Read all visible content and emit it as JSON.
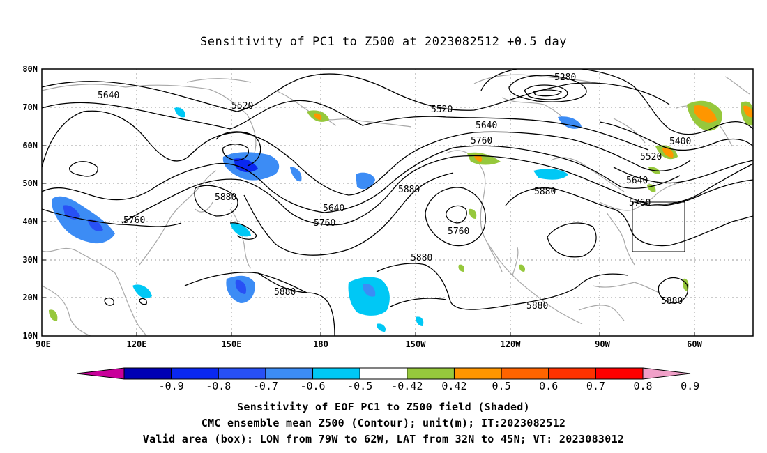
{
  "title": "Sensitivity of PC1 to Z500 at 2023082512 +0.5 day",
  "lat_labels": [
    "80N",
    "70N",
    "60N",
    "50N",
    "40N",
    "30N",
    "20N",
    "10N"
  ],
  "lon_labels": [
    "90E",
    "120E",
    "150E",
    "180",
    "150W",
    "120W",
    "90W",
    "60W"
  ],
  "contour_labels": [
    {
      "text": "5640",
      "id": "c1"
    },
    {
      "text": "5520",
      "id": "c2"
    },
    {
      "text": "5280",
      "id": "c3"
    },
    {
      "text": "5520",
      "id": "c4"
    },
    {
      "text": "5640",
      "id": "c5"
    },
    {
      "text": "5760",
      "id": "c6"
    },
    {
      "text": "5400",
      "id": "c7"
    },
    {
      "text": "5520",
      "id": "c8"
    },
    {
      "text": "5640",
      "id": "c9"
    },
    {
      "text": "5760",
      "id": "c10"
    },
    {
      "text": "5880",
      "id": "c11"
    },
    {
      "text": "5880",
      "id": "c12"
    },
    {
      "text": "5640",
      "id": "c13"
    },
    {
      "text": "5760",
      "id": "c14"
    },
    {
      "text": "5760",
      "id": "c15"
    },
    {
      "text": "5760",
      "id": "c16"
    },
    {
      "text": "5880",
      "id": "c17"
    },
    {
      "text": "5880",
      "id": "c18"
    },
    {
      "text": "5880",
      "id": "c19"
    },
    {
      "text": "5880",
      "id": "c20"
    },
    {
      "text": "5880",
      "id": "c21"
    }
  ],
  "colorbar": {
    "labels": [
      "-0.9",
      "-0.8",
      "-0.7",
      "-0.6",
      "-0.5",
      "-0.42",
      "0.42",
      "0.5",
      "0.6",
      "0.7",
      "0.8",
      "0.9"
    ],
    "colors": [
      "#c8009a",
      "#0000b4",
      "#0a28f0",
      "#2850f5",
      "#3c8cf5",
      "#00c8f5",
      "#ffffff",
      "#96c83c",
      "#ff9600",
      "#ff6400",
      "#ff3200",
      "#ff0000",
      "#f0a0c8"
    ]
  },
  "valid_box": {
    "lon": [
      -79,
      -62
    ],
    "lat": [
      32,
      45
    ]
  },
  "captions": [
    "Sensitivity of EOF PC1 to Z500 field (Shaded)",
    "CMC ensemble mean Z500 (Contour); unit(m); IT:2023082512",
    "Valid area (box): LON from 79W to 62W, LAT from 32N to 45N; VT: 2023083012"
  ]
}
